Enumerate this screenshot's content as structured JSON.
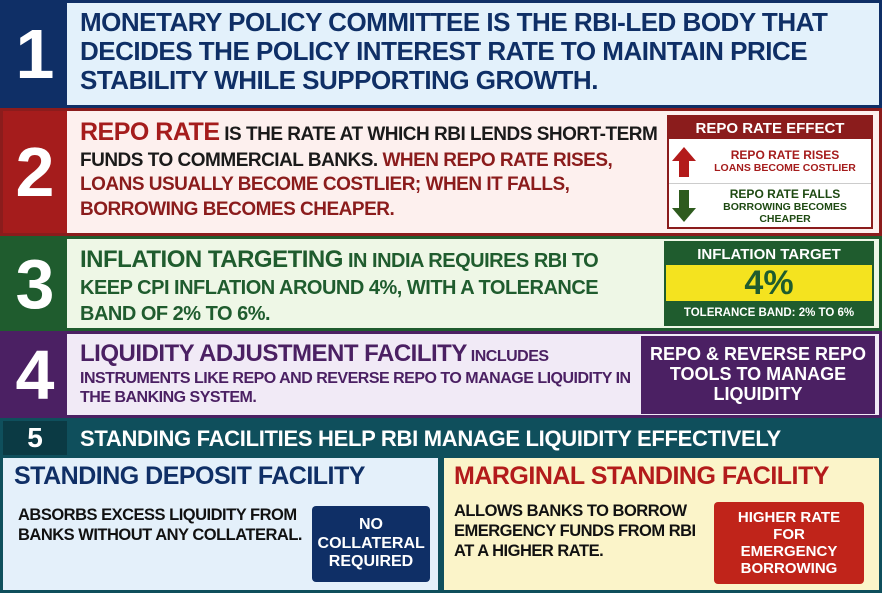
{
  "sections": [
    {
      "number": "1",
      "text": "MONETARY POLICY COMMITTEE IS THE RBI-LED BODY THAT DECIDES THE POLICY INTEREST RATE TO MAINTAIN PRICE STABILITY WHILE SUPPORTING GROWTH."
    },
    {
      "number": "2",
      "highlight": "REPO RATE",
      "text": " IS THE RATE AT WHICH RBI LENDS SHORT-TERM FUNDS TO COMMERCIAL BANKS. ",
      "emphasis": "WHEN REPO RATE RISES, LOANS USUALLY BECOME COSTLIER; WHEN IT FALLS, BORROWING BECOMES CHEAPER.",
      "box": {
        "title": "REPO RATE EFFECT",
        "items": [
          {
            "label": "REPO RATE RISES",
            "detail": "LOANS BECOME COSTLIER"
          },
          {
            "label": "REPO RATE FALLS",
            "detail": "BORROWING BECOMES CHEAPER"
          }
        ]
      }
    },
    {
      "number": "3",
      "highlight": "INFLATION TARGETING",
      "text": " IN INDIA REQUIRES RBI TO KEEP CPI INFLATION AROUND 4%, WITH A TOLERANCE BAND OF 2% TO 6%.",
      "box": {
        "title": "INFLATION TARGET",
        "value": "4%",
        "note": "TOLERANCE BAND: 2% TO 6%"
      }
    },
    {
      "number": "4",
      "highlight": "LIQUIDITY ADJUSTMENT FACILITY",
      "text": " INCLUDES INSTRUMENTS LIKE REPO AND REVERSE REPO TO MANAGE LIQUIDITY IN THE BANKING SYSTEM.",
      "box": "REPO & REVERSE REPO TOOLS TO MANAGE LIQUIDITY"
    },
    {
      "number": "5",
      "title": "STANDING FACILITIES HELP RBI MANAGE LIQUIDITY EFFECTIVELY",
      "left": {
        "title": "STANDING DEPOSIT FACILITY",
        "text": "ABSORBS EXCESS LIQUIDITY FROM BANKS WITHOUT ANY COLLATERAL.",
        "badge": "NO COLLATERAL REQUIRED"
      },
      "right": {
        "title": "MARGINAL STANDING FACILITY",
        "text": "ALLOWS BANKS TO BORROW EMERGENCY FUNDS FROM RBI AT A HIGHER RATE.",
        "badge": "HIGHER RATE FOR EMERGENCY BORROWING"
      }
    }
  ]
}
